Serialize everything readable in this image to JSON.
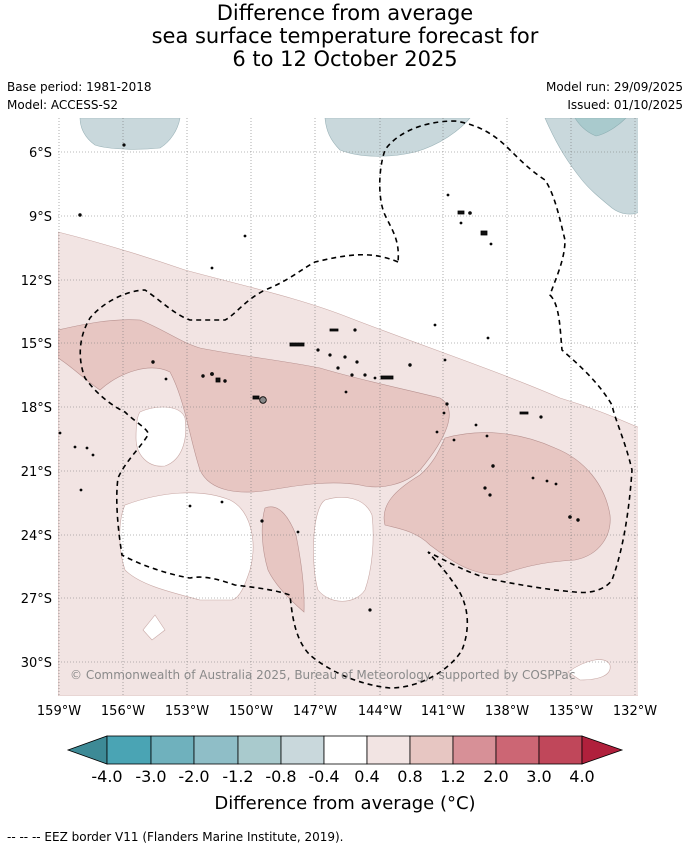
{
  "title": {
    "line1": "Difference from average",
    "line2": "sea surface temperature forecast for",
    "line3": "6 to 12 October 2025"
  },
  "meta": {
    "base_period": "Base period: 1981-2018",
    "model": "Model: ACCESS-S2",
    "model_run": "Model run: 29/09/2025",
    "issued": "Issued: 01/10/2025"
  },
  "map": {
    "lat_labels": [
      "6°S",
      "9°S",
      "12°S",
      "15°S",
      "18°S",
      "21°S",
      "24°S",
      "27°S",
      "30°S"
    ],
    "lon_labels": [
      "159°W",
      "156°W",
      "153°W",
      "150°W",
      "147°W",
      "144°W",
      "141°W",
      "138°W",
      "135°W",
      "132°W"
    ],
    "copyright": "© Commonwealth of Australia 2025, Bureau of Meteorology, supported by COSPPac"
  },
  "colorbar": {
    "ticks": [
      "-4.0",
      "-3.0",
      "-2.0",
      "-1.2",
      "-0.8",
      "-0.4",
      "0.4",
      "0.8",
      "1.2",
      "2.0",
      "3.0",
      "4.0"
    ],
    "colors": [
      "#3d8a96",
      "#4aa4b4",
      "#6fb1bd",
      "#8fbec7",
      "#a9cacd",
      "#c9d8dc",
      "#ffffff",
      "#f2e4e3",
      "#e7c6c2",
      "#d79097",
      "#cc6674",
      "#c0475a",
      "#b0203c"
    ],
    "title": "Difference from average (°C)"
  },
  "footer": "--  --  -- EEZ border V11 (Flanders Marine Institute, 2019)."
}
